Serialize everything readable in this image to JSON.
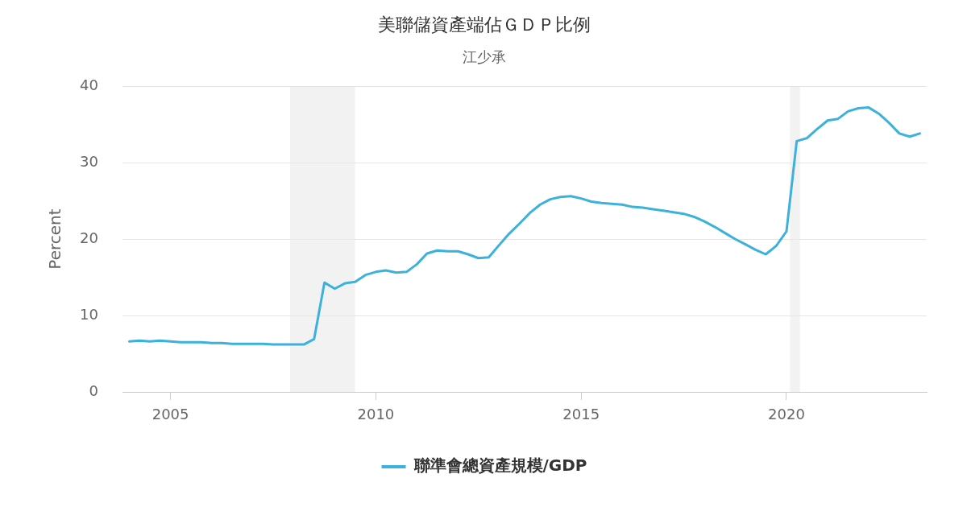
{
  "chart_data": {
    "type": "line",
    "title": "美聯儲資產端佔ＧＤＰ比例",
    "subtitle": "江少承",
    "ylabel": "Percent",
    "x": [
      "2004-01",
      "2004-04",
      "2004-07",
      "2004-10",
      "2005-01",
      "2005-04",
      "2005-07",
      "2005-10",
      "2006-01",
      "2006-04",
      "2006-07",
      "2006-10",
      "2007-01",
      "2007-04",
      "2007-07",
      "2007-10",
      "2008-01",
      "2008-04",
      "2008-07",
      "2008-10",
      "2009-01",
      "2009-04",
      "2009-07",
      "2009-10",
      "2010-01",
      "2010-04",
      "2010-07",
      "2010-10",
      "2011-01",
      "2011-04",
      "2011-07",
      "2011-10",
      "2012-01",
      "2012-04",
      "2012-07",
      "2012-10",
      "2013-01",
      "2013-04",
      "2013-07",
      "2013-10",
      "2014-01",
      "2014-04",
      "2014-07",
      "2014-10",
      "2015-01",
      "2015-04",
      "2015-07",
      "2015-10",
      "2016-01",
      "2016-04",
      "2016-07",
      "2016-10",
      "2017-01",
      "2017-04",
      "2017-07",
      "2017-10",
      "2018-01",
      "2018-04",
      "2018-07",
      "2018-10",
      "2019-01",
      "2019-04",
      "2019-07",
      "2019-10",
      "2020-01",
      "2020-04",
      "2020-07",
      "2020-10",
      "2021-01",
      "2021-04",
      "2021-07",
      "2021-10",
      "2022-01",
      "2022-04",
      "2022-07",
      "2022-10",
      "2023-01",
      "2023-04"
    ],
    "series": [
      {
        "name": "聯準會總資產規模/GDP",
        "color": "#3cb1dc",
        "values": [
          6.6,
          6.7,
          6.6,
          6.7,
          6.6,
          6.5,
          6.5,
          6.5,
          6.4,
          6.4,
          6.3,
          6.3,
          6.3,
          6.3,
          6.2,
          6.2,
          6.2,
          6.2,
          6.9,
          14.3,
          13.5,
          14.2,
          14.4,
          15.3,
          15.7,
          15.9,
          15.6,
          15.7,
          16.7,
          18.1,
          18.5,
          18.4,
          18.4,
          18.0,
          17.5,
          17.6,
          19.2,
          20.7,
          22.0,
          23.4,
          24.5,
          25.2,
          25.5,
          25.6,
          25.3,
          24.9,
          24.7,
          24.6,
          24.5,
          24.2,
          24.1,
          23.9,
          23.7,
          23.5,
          23.3,
          22.9,
          22.3,
          21.6,
          20.8,
          20.0,
          19.3,
          18.6,
          18.0,
          19.1,
          21.0,
          32.8,
          33.2,
          34.4,
          35.5,
          35.7,
          36.7,
          37.1,
          37.2,
          36.4,
          35.2,
          33.8,
          33.4,
          33.8
        ]
      }
    ],
    "xlim": [
      "2003-11",
      "2023-06"
    ],
    "xticks": [
      "2005",
      "2010",
      "2015",
      "2020"
    ],
    "ylim": [
      0,
      40
    ],
    "yticks": [
      0,
      10,
      20,
      30,
      40
    ],
    "bands": [
      {
        "axis": "x",
        "from": "2007-12-01",
        "to": "2009-06-30",
        "color": "#f2f2f2"
      },
      {
        "axis": "x",
        "from": "2020-02-01",
        "to": "2020-04-30",
        "color": "#f2f2f2"
      }
    ],
    "grid": "y",
    "legend": "bottom",
    "line_style": "solid"
  }
}
